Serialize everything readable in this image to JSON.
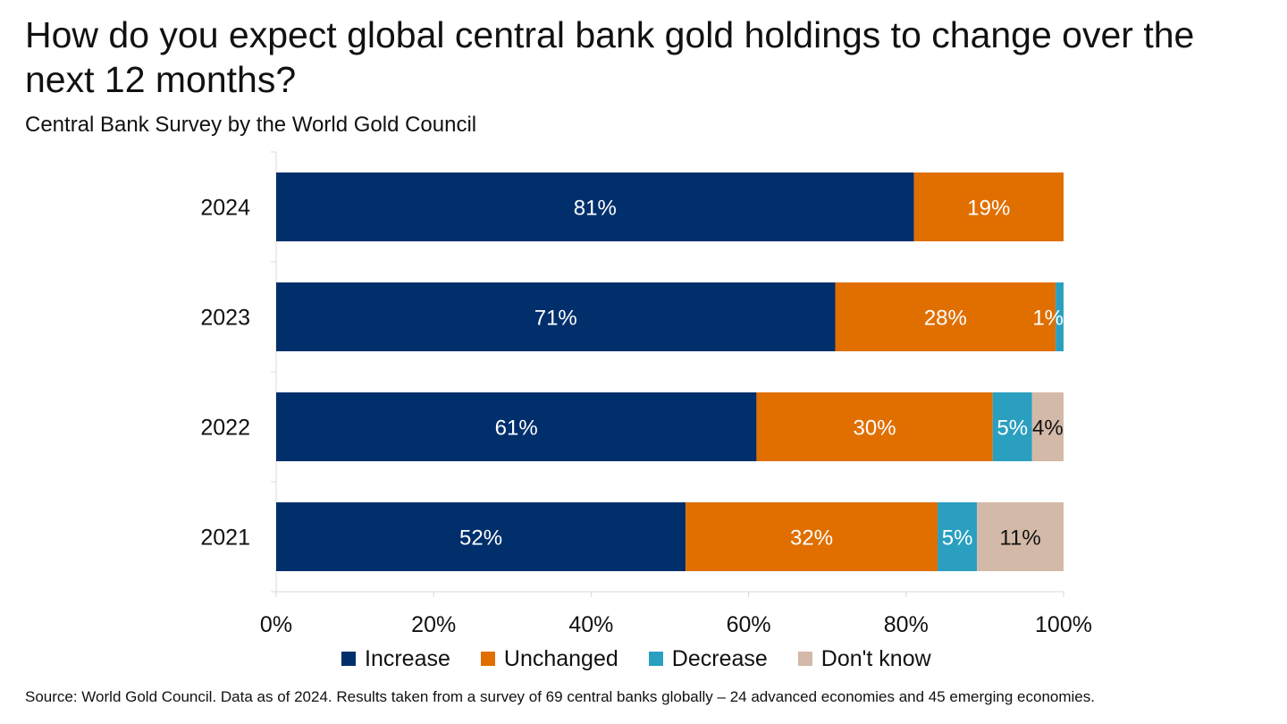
{
  "header": {
    "title": "How do you expect global central bank gold holdings to change over the next 12 months?",
    "subtitle": "Central Bank Survey by the World Gold Council"
  },
  "footer": {
    "source": "Source: World Gold Council. Data as of 2024. Results taken from a survey of 69 central banks globally – 24 advanced economies and 45 emerging economies."
  },
  "chart_data": {
    "type": "bar",
    "orientation": "horizontal",
    "stacked": true,
    "categories": [
      "2024",
      "2023",
      "2022",
      "2021"
    ],
    "series": [
      {
        "name": "Increase",
        "color": "#002f6c",
        "values": [
          81,
          71,
          61,
          52
        ],
        "labels": [
          "81%",
          "71%",
          "61%",
          "52%"
        ],
        "label_color": "#ffffff"
      },
      {
        "name": "Unchanged",
        "color": "#e06f00",
        "values": [
          19,
          28,
          30,
          32
        ],
        "labels": [
          "19%",
          "28%",
          "30%",
          "32%"
        ],
        "label_color": "#ffffff"
      },
      {
        "name": "Decrease",
        "color": "#2b9fbf",
        "values": [
          0,
          1,
          5,
          5
        ],
        "labels": [
          "",
          "1%",
          "5%",
          "5%"
        ],
        "label_color": "#ffffff"
      },
      {
        "name": "Don't know",
        "color": "#d3b9a7",
        "values": [
          0,
          0,
          4,
          11
        ],
        "labels": [
          "",
          "",
          "4%",
          "11%"
        ],
        "label_color": "#111111"
      }
    ],
    "xlim": [
      0,
      100
    ],
    "xticks": [
      0,
      20,
      40,
      60,
      80,
      100
    ],
    "xtick_labels": [
      "0%",
      "20%",
      "40%",
      "60%",
      "80%",
      "100%"
    ],
    "grid": false,
    "legend_position": "bottom"
  }
}
